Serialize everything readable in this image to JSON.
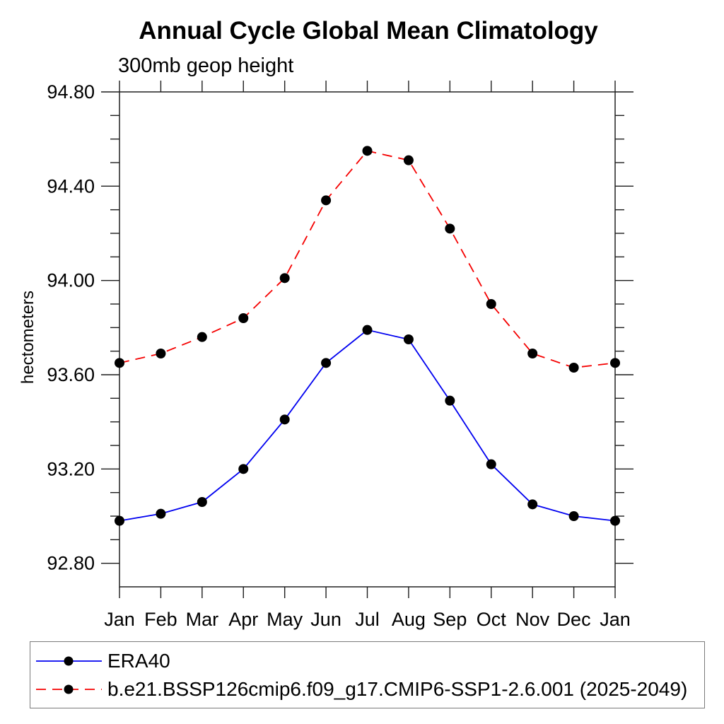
{
  "chart_data": {
    "type": "line",
    "title": "Annual Cycle Global Mean Climatology",
    "subtitle": "300mb geop height",
    "ylabel": "hectometers",
    "categories": [
      "Jan",
      "Feb",
      "Mar",
      "Apr",
      "May",
      "Jun",
      "Jul",
      "Aug",
      "Sep",
      "Oct",
      "Nov",
      "Dec",
      "Jan"
    ],
    "ylim": [
      92.7,
      94.8
    ],
    "y_major_ticks": [
      "92.80",
      "93.20",
      "93.60",
      "94.00",
      "94.40",
      "94.80"
    ],
    "y_minor_step": 0.1,
    "grid": false,
    "legend_position": "bottom-left-outside",
    "marker": {
      "shape": "filled-circle",
      "color": "#000000"
    },
    "axis_color": "#2e2e2e",
    "series": [
      {
        "id": "era40",
        "name": "ERA40",
        "color": "#0000f0",
        "line_style": "solid",
        "values": [
          92.98,
          93.01,
          93.06,
          93.2,
          93.41,
          93.65,
          93.79,
          93.75,
          93.49,
          93.22,
          93.05,
          93.0,
          92.98
        ]
      },
      {
        "id": "cesm-ssp126",
        "name": "b.e21.BSSP126cmip6.f09_g17.CMIP6-SSP1-2.6.001 (2025-2049)",
        "color": "#f50000",
        "line_style": "dashed",
        "values": [
          93.65,
          93.69,
          93.76,
          93.84,
          94.01,
          94.34,
          94.55,
          94.51,
          94.22,
          93.9,
          93.69,
          93.63,
          93.65
        ]
      }
    ]
  }
}
